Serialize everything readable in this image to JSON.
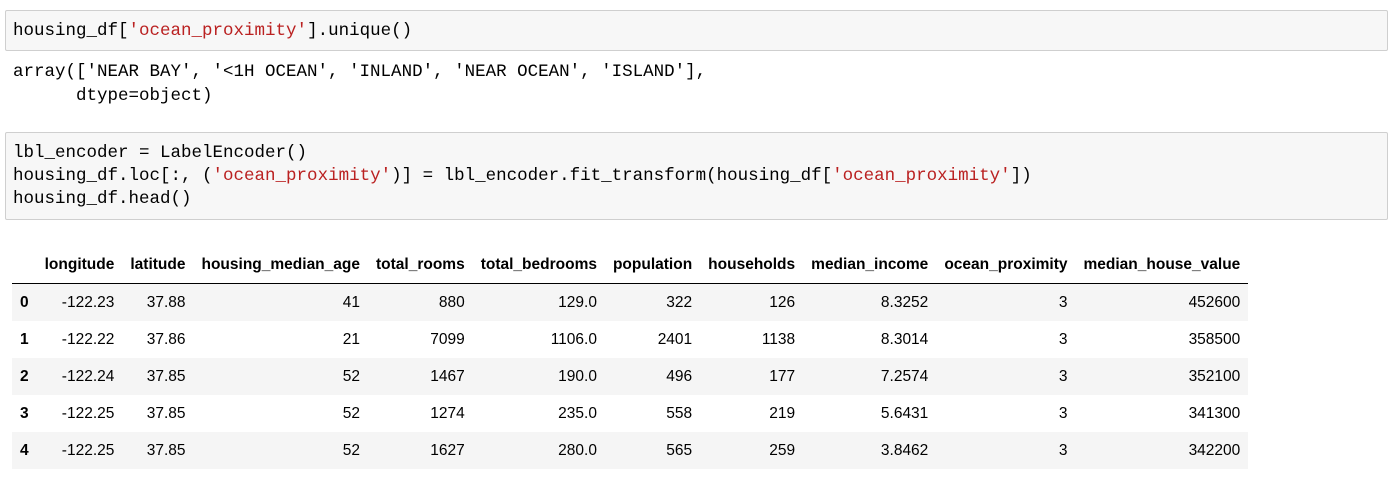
{
  "cells": [
    {
      "code": [
        "housing_df['ocean_proximity'].unique()"
      ],
      "output": [
        "array(['NEAR BAY', '<1H OCEAN', 'INLAND', 'NEAR OCEAN', 'ISLAND'],",
        "      dtype=object)"
      ]
    },
    {
      "code": [
        "lbl_encoder = LabelEncoder()",
        "housing_df.loc[:, ('ocean_proximity')] = lbl_encoder.fit_transform(housing_df['ocean_proximity'])",
        "housing_df.head()"
      ],
      "table": {
        "columns": [
          "longitude",
          "latitude",
          "housing_median_age",
          "total_rooms",
          "total_bedrooms",
          "population",
          "households",
          "median_income",
          "ocean_proximity",
          "median_house_value"
        ],
        "rows": [
          {
            "index": "0",
            "cells": [
              "-122.23",
              "37.88",
              "41",
              "880",
              "129.0",
              "322",
              "126",
              "8.3252",
              "3",
              "452600"
            ]
          },
          {
            "index": "1",
            "cells": [
              "-122.22",
              "37.86",
              "21",
              "7099",
              "1106.0",
              "2401",
              "1138",
              "8.3014",
              "3",
              "358500"
            ]
          },
          {
            "index": "2",
            "cells": [
              "-122.24",
              "37.85",
              "52",
              "1467",
              "190.0",
              "496",
              "177",
              "7.2574",
              "3",
              "352100"
            ]
          },
          {
            "index": "3",
            "cells": [
              "-122.25",
              "37.85",
              "52",
              "1274",
              "235.0",
              "558",
              "219",
              "5.6431",
              "3",
              "341300"
            ]
          },
          {
            "index": "4",
            "cells": [
              "-122.25",
              "37.85",
              "52",
              "1627",
              "280.0",
              "565",
              "259",
              "3.8462",
              "3",
              "342200"
            ]
          }
        ]
      }
    }
  ]
}
